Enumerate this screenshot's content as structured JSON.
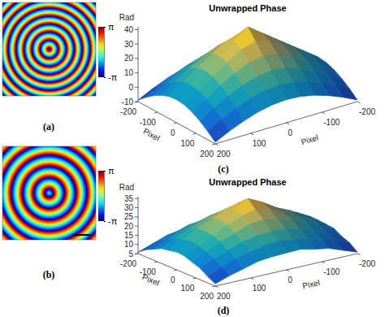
{
  "chart_data": [
    {
      "type": "wrapped_phase",
      "label": "(a)",
      "xlim": [
        -200,
        200
      ],
      "ylim": [
        -200,
        200
      ],
      "tick_labels": false,
      "center_phase": -1.98,
      "jump_radii": [
        6,
        40,
        75,
        109,
        143,
        177,
        211,
        245,
        279
      ],
      "corner_phase": 2.48,
      "colorbar": {
        "range": [
          -3.14159,
          3.14159
        ],
        "ticks": [
          {
            "value": -3.14159,
            "label": "-π"
          },
          {
            "value": 3.14159,
            "label": "π"
          }
        ]
      }
    },
    {
      "type": "wrapped_phase",
      "label": "(b)",
      "xlim": [
        -200,
        200
      ],
      "ylim": [
        -200,
        200
      ],
      "tick_labels": false,
      "center_phase": -0.52,
      "jump_radii": [
        20,
        68,
        116,
        164,
        212,
        260
      ],
      "corner_phase": 0.13,
      "colorbar": {
        "range": [
          -3.14159,
          3.14159
        ],
        "ticks": [
          {
            "value": -3.14159,
            "label": "-π"
          },
          {
            "value": 3.14159,
            "label": "π"
          }
        ]
      }
    },
    {
      "type": "surface",
      "label": "(c)",
      "title": "Unwrapped Phase",
      "xlabel": "Pixel",
      "ylabel": "Pixel",
      "zlabel": "Rad",
      "x": [
        -200,
        -160,
        -120,
        -80,
        -40,
        0,
        40,
        80,
        120,
        160,
        200
      ],
      "y": [
        -200,
        -160,
        -120,
        -80,
        -40,
        0,
        40,
        80,
        120,
        160,
        200
      ],
      "z": [
        [
          -8.9,
          -4.1,
          0.0,
          3.2,
          5.3,
          6.0,
          5.3,
          3.2,
          0.0,
          -4.1,
          -8.9
        ],
        [
          -4.1,
          1.3,
          6.0,
          9.8,
          12.3,
          13.2,
          12.3,
          9.8,
          6.0,
          1.3,
          -4.1
        ],
        [
          0.0,
          6.0,
          11.5,
          16.0,
          19.2,
          20.4,
          19.2,
          16.0,
          11.5,
          6.0,
          0.0
        ],
        [
          3.2,
          9.8,
          16.0,
          21.6,
          25.9,
          27.6,
          25.9,
          21.6,
          16.0,
          9.8,
          3.2
        ],
        [
          5.3,
          12.3,
          19.2,
          25.9,
          31.8,
          34.8,
          31.8,
          25.9,
          19.2,
          12.3,
          5.3
        ],
        [
          6.0,
          13.2,
          20.4,
          27.6,
          34.8,
          42.0,
          34.8,
          27.6,
          20.4,
          13.2,
          6.0
        ],
        [
          5.3,
          12.3,
          19.2,
          25.9,
          31.8,
          34.8,
          31.8,
          25.9,
          19.2,
          12.3,
          5.3
        ],
        [
          3.2,
          9.8,
          16.0,
          21.6,
          25.9,
          27.6,
          25.9,
          21.6,
          16.0,
          9.8,
          3.2
        ],
        [
          0.0,
          6.0,
          11.5,
          16.0,
          19.2,
          20.4,
          19.2,
          16.0,
          11.5,
          6.0,
          0.0
        ],
        [
          -4.1,
          1.3,
          6.0,
          9.8,
          12.3,
          13.2,
          12.3,
          9.8,
          6.0,
          1.3,
          -4.1
        ],
        [
          -8.9,
          -4.1,
          0.0,
          3.2,
          5.3,
          6.0,
          5.3,
          3.2,
          0.0,
          -4.1,
          -8.9
        ]
      ],
      "xlim": [
        -200,
        200
      ],
      "ylim": [
        -200,
        200
      ],
      "zlim": [
        -10,
        42
      ],
      "xticks": [
        -200,
        -100,
        0,
        100,
        200
      ],
      "yticks": [
        -200,
        -100,
        0,
        100,
        200
      ],
      "zticks": [
        -10,
        0,
        10,
        20,
        30,
        40
      ]
    },
    {
      "type": "surface",
      "label": "(d)",
      "title": "Unwrapped Phase",
      "xlabel": "Pixel",
      "ylabel": "Pixel",
      "zlabel": "Rad",
      "x": [
        -200,
        -160,
        -120,
        -80,
        -40,
        0,
        40,
        80,
        120,
        160,
        200
      ],
      "y": [
        -200,
        -160,
        -120,
        -80,
        -40,
        0,
        40,
        80,
        120,
        160,
        200
      ],
      "z": [
        [
          6.3,
          8.4,
          11.5,
          12.6,
          14.4,
          14.2,
          13.8,
          13.3,
          10.8,
          9.1,
          5.8
        ],
        [
          8.9,
          11.4,
          14.8,
          16.3,
          18.5,
          18.3,
          18.4,
          16.9,
          14.1,
          12.2,
          8.5
        ],
        [
          10.8,
          14.9,
          17.3,
          20.6,
          21.7,
          23.1,
          21.8,
          20.5,
          17.2,
          14.8,
          11.4
        ],
        [
          13.2,
          16.4,
          20.5,
          23.1,
          26.1,
          26.5,
          25.6,
          23.8,
          19.9,
          17.0,
          12.6
        ],
        [
          13.8,
          18.4,
          21.7,
          26.0,
          28.9,
          31.3,
          29.5,
          25.5,
          22.3,
          17.8,
          14.4
        ],
        [
          14.7,
          18.3,
          22.9,
          26.5,
          31.2,
          35.0,
          30.6,
          27.1,
          22.4,
          18.9,
          14.2
        ],
        [
          14.3,
          17.9,
          22.2,
          25.6,
          29.4,
          30.7,
          28.9,
          26.1,
          21.8,
          18.3,
          13.9
        ],
        [
          12.7,
          16.9,
          19.9,
          23.6,
          25.5,
          27.0,
          26.0,
          23.2,
          20.4,
          16.5,
          13.1
        ],
        [
          11.3,
          14.2,
          17.8,
          19.9,
          22.3,
          22.5,
          21.8,
          20.4,
          17.4,
          14.7,
          10.9
        ],
        [
          8.5,
          12.0,
          14.3,
          16.9,
          17.8,
          18.8,
          18.2,
          16.5,
          14.7,
          11.6,
          8.9
        ],
        [
          5.8,
          8.9,
          10.9,
          13.1,
          13.8,
          14.7,
          14.3,
          12.7,
          11.3,
          8.5,
          6.2
        ]
      ],
      "xlim": [
        -200,
        200
      ],
      "ylim": [
        -200,
        200
      ],
      "zlim": [
        5,
        36
      ],
      "xticks": [
        -200,
        -100,
        0,
        100,
        200
      ],
      "yticks": [
        -200,
        -100,
        0,
        100,
        200
      ],
      "zticks": [
        5,
        10,
        15,
        20,
        25,
        30,
        35
      ]
    }
  ]
}
